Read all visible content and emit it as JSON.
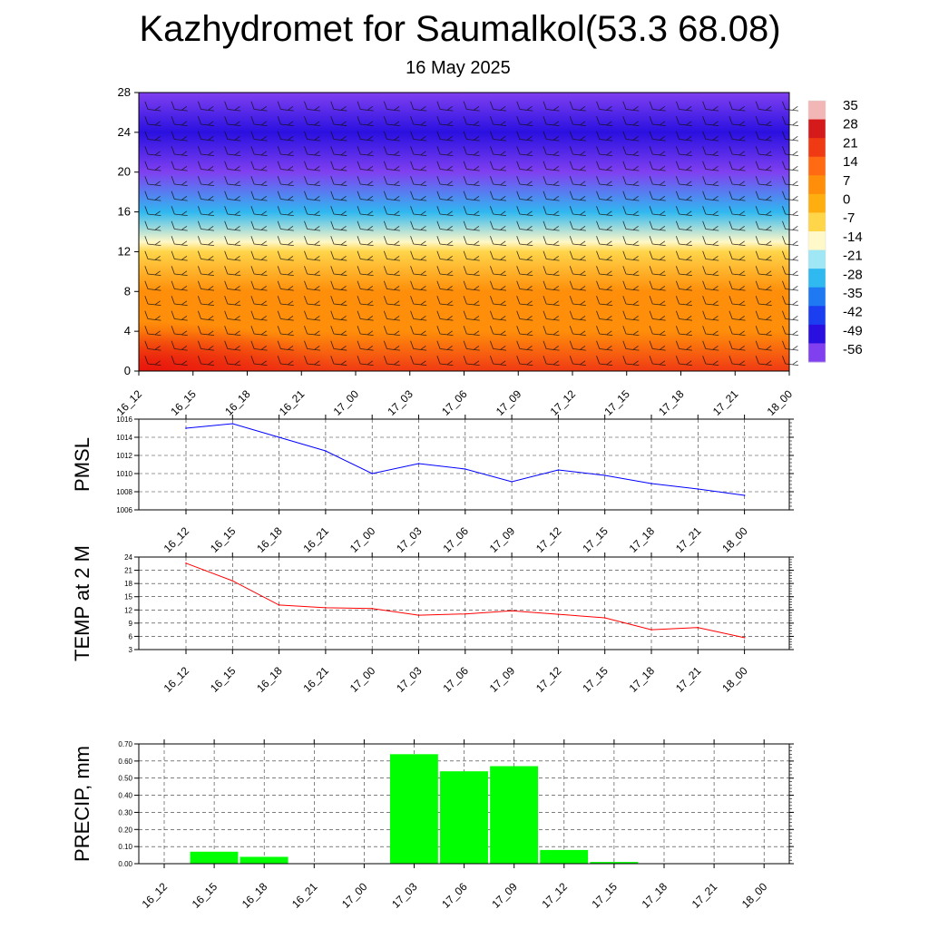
{
  "header": {
    "title": "Kazhydromet for Saumalkol(53.3 68.08)",
    "subtitle": "16 May 2025"
  },
  "chart_data": [
    {
      "type": "heatmap",
      "x_ticks": [
        "16_12",
        "16_15",
        "16_18",
        "16_21",
        "17_00",
        "17_03",
        "17_06",
        "17_09",
        "17_12",
        "17_15",
        "17_18",
        "17_21",
        "18_00"
      ],
      "y_ticks": [
        0,
        4,
        8,
        12,
        16,
        20,
        24,
        28
      ],
      "ylim": [
        0,
        28
      ],
      "colorbar_ticks": [
        35,
        28,
        21,
        14,
        7,
        0,
        -7,
        -14,
        -21,
        -28,
        -35,
        -42,
        -49,
        -56
      ],
      "colorbar_colors": [
        "#f2b6b6",
        "#d41a1a",
        "#f03a14",
        "#ff6a12",
        "#ff8e0a",
        "#ffae10",
        "#ffd54a",
        "#fff8c8",
        "#9fe7f5",
        "#30b8f0",
        "#1f79f2",
        "#1a3ef0",
        "#2a10e0",
        "#8040f0"
      ],
      "temperature_profile": [
        {
          "height": 0,
          "value": 18
        },
        {
          "height": 4,
          "value": 10
        },
        {
          "height": 8,
          "value": 4
        },
        {
          "height": 12,
          "value": -4
        },
        {
          "height": 13,
          "value": -14
        },
        {
          "height": 16,
          "value": -30
        },
        {
          "height": 20,
          "value": -55
        },
        {
          "height": 24,
          "value": -50
        },
        {
          "height": 28,
          "value": -58
        }
      ]
    },
    {
      "type": "line",
      "ylabel": "PMSL",
      "categories": [
        "16_12",
        "16_15",
        "16_18",
        "16_21",
        "17_00",
        "17_03",
        "17_06",
        "17_09",
        "17_12",
        "17_15",
        "17_18",
        "17_21",
        "18_00"
      ],
      "ylim": [
        1006,
        1016
      ],
      "y_ticks": [
        1006,
        1008,
        1010,
        1012,
        1014,
        1016
      ],
      "line_color": "#0000ff",
      "values": [
        1015.0,
        1015.5,
        1014.0,
        1012.5,
        1010.0,
        1011.1,
        1010.5,
        1009.1,
        1010.4,
        1009.8,
        1008.9,
        1008.3,
        1007.6
      ]
    },
    {
      "type": "line",
      "ylabel": "TEMP at 2 M",
      "categories": [
        "16_12",
        "16_15",
        "16_18",
        "16_21",
        "17_00",
        "17_03",
        "17_06",
        "17_09",
        "17_12",
        "17_15",
        "17_18",
        "17_21",
        "18_00"
      ],
      "ylim": [
        3,
        24
      ],
      "y_ticks": [
        3,
        6,
        9,
        12,
        15,
        18,
        21,
        24
      ],
      "line_color": "#ff0000",
      "values": [
        22.6,
        18.6,
        13.1,
        12.5,
        12.3,
        10.8,
        11.1,
        11.8,
        11.0,
        10.2,
        7.5,
        8.0,
        5.7
      ]
    },
    {
      "type": "bar",
      "ylabel": "PRECIP, mm",
      "categories": [
        "16_12",
        "16_15",
        "16_18",
        "16_21",
        "17_00",
        "17_03",
        "17_06",
        "17_09",
        "17_12",
        "17_15",
        "17_18",
        "17_21",
        "18_00"
      ],
      "ylim": [
        0,
        0.7
      ],
      "y_ticks": [
        "0.00",
        "0.10",
        "0.20",
        "0.30",
        "0.40",
        "0.50",
        "0.60",
        "0.70"
      ],
      "bar_color": "#00ff00",
      "values": [
        0,
        0.07,
        0.04,
        0,
        0,
        0.64,
        0.54,
        0.57,
        0.08,
        0.01,
        0,
        0,
        0
      ]
    }
  ]
}
